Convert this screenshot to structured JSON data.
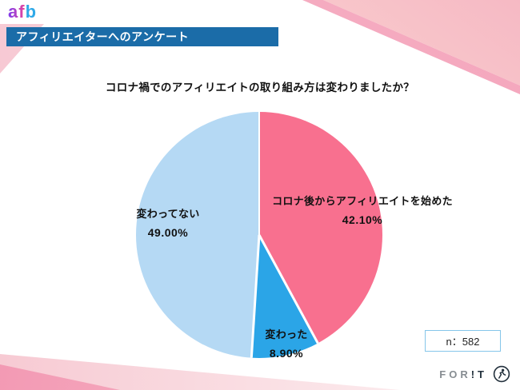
{
  "brand": {
    "logo_af": "af",
    "logo_b": "b"
  },
  "header": {
    "title": "アフィリエイターへのアンケート"
  },
  "chart_data": {
    "type": "pie",
    "title": "コロナ禍でのアフィリエイトの取り組み方は変わりましたか？",
    "start_angle_deg": 0,
    "direction": "clockwise",
    "segments": [
      {
        "label": "コロナ後からアフィリエイトを始めた",
        "value": 42.1,
        "display": "42.10%",
        "color": "#F8708F"
      },
      {
        "label": "変わった",
        "value": 8.9,
        "display": "8.90%",
        "color": "#2BA5E7"
      },
      {
        "label": "変わってない",
        "value": 49.0,
        "display": "49.00%",
        "color": "#B5D9F4"
      }
    ],
    "sample_size": 582,
    "legend": "labels placed on slices"
  },
  "footer": {
    "sample_label": "n：582",
    "forit_gray": "FOR",
    "forit_dark": "!T"
  },
  "colors": {
    "header_bar": "#1B6CA8",
    "accent_pink": "#F8708F",
    "accent_blue": "#2BA5E7",
    "accent_lightblue": "#B5D9F4",
    "n_box_border": "#85C6EA"
  }
}
